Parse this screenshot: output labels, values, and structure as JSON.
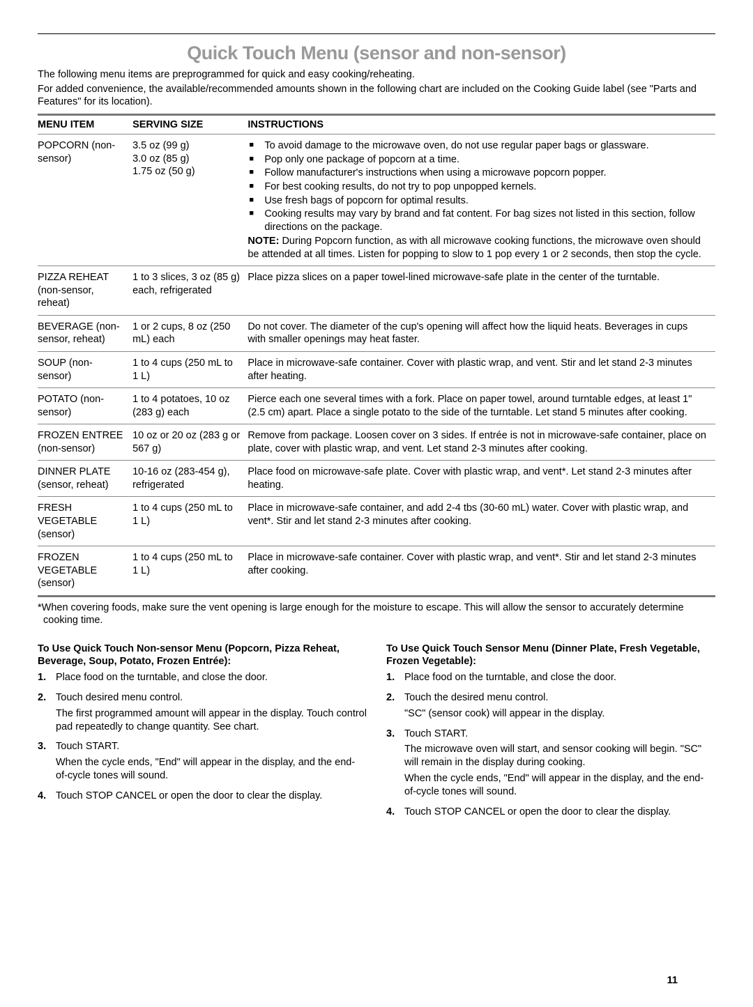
{
  "title": "Quick Touch Menu (sensor and non-sensor)",
  "intro": {
    "p1": "The following menu items are preprogrammed for quick and easy cooking/reheating.",
    "p2": "For added convenience, the available/recommended amounts shown in the following chart are included on the Cooking Guide label (see \"Parts and Features\" for its location)."
  },
  "table": {
    "headers": {
      "c1": "MENU ITEM",
      "c2": "SERVING SIZE",
      "c3": "INSTRUCTIONS"
    },
    "rows": [
      {
        "menu": "POPCORN (non-sensor)",
        "serving": "3.5 oz (99 g)\n3.0 oz (85 g)\n1.75 oz (50 g)",
        "bullets": [
          "To avoid damage to the microwave oven, do not use regular paper bags or glassware.",
          "Pop only one package of popcorn at a time.",
          "Follow manufacturer's instructions when using a microwave popcorn popper.",
          "For best cooking results, do not try to pop unpopped kernels.",
          "Use fresh bags of popcorn for optimal results.",
          "Cooking results may vary by brand and fat content. For bag sizes not listed in this section, follow directions on the package."
        ],
        "note_label": "NOTE:",
        "note": " During Popcorn function, as with all microwave cooking functions, the microwave oven should be attended at all times. Listen for popping to slow to 1 pop every 1 or 2 seconds, then stop the cycle."
      },
      {
        "menu": "PIZZA REHEAT (non-sensor, reheat)",
        "serving": "1 to 3 slices, 3 oz (85 g) each, refrigerated",
        "instr": "Place pizza slices on a paper towel-lined microwave-safe plate in the center of the turntable."
      },
      {
        "menu": "BEVERAGE (non-sensor, reheat)",
        "serving": "1 or 2 cups, 8 oz (250 mL) each",
        "instr": "Do not cover. The diameter of the cup's opening will affect how the liquid heats. Beverages in cups with smaller openings may heat faster."
      },
      {
        "menu": "SOUP (non-sensor)",
        "serving": "1 to 4 cups (250 mL to 1 L)",
        "instr": "Place in microwave-safe container. Cover with plastic wrap, and vent. Stir and let stand 2-3 minutes after heating."
      },
      {
        "menu": "POTATO (non-sensor)",
        "serving": "1 to 4 potatoes, 10 oz (283 g) each",
        "instr": "Pierce each one several times with a fork. Place on paper towel, around turntable edges, at least 1\" (2.5 cm) apart. Place a single potato to the side of the turntable. Let stand 5 minutes after cooking."
      },
      {
        "menu": "FROZEN ENTREE (non-sensor)",
        "serving": "10 oz or 20 oz (283 g or 567 g)",
        "instr": "Remove from package. Loosen cover on 3 sides. If entrée is not in microwave-safe container, place on plate, cover with plastic wrap, and vent. Let stand 2-3 minutes after cooking."
      },
      {
        "menu": "DINNER PLATE (sensor, reheat)",
        "serving": "10-16 oz (283-454 g), refrigerated",
        "instr": "Place food on microwave-safe plate. Cover with plastic wrap, and vent*. Let stand 2-3 minutes after heating."
      },
      {
        "menu": "FRESH VEGETABLE (sensor)",
        "serving": "1 to 4 cups (250 mL to 1 L)",
        "instr": "Place in microwave-safe container, and add 2-4 tbs (30-60 mL) water. Cover with plastic wrap, and vent*. Stir and let stand 2-3 minutes after cooking."
      },
      {
        "menu": "FROZEN VEGETABLE (sensor)",
        "serving": "1 to 4 cups (250 mL to 1 L)",
        "instr": "Place in microwave-safe container. Cover with plastic wrap, and vent*. Stir and let stand 2-3 minutes after cooking."
      }
    ]
  },
  "footnote": "*When covering foods, make sure the vent opening is large enough for the moisture to escape. This will allow the sensor to accurately determine cooking time.",
  "left": {
    "heading": "To Use Quick Touch Non-sensor Menu (Popcorn, Pizza Reheat, Beverage, Soup, Potato, Frozen Entrée):",
    "steps": [
      {
        "t": "Place food on the turntable, and close the door."
      },
      {
        "t": "Touch desired menu control.",
        "sub": [
          "The first programmed amount will appear in the display. Touch control pad repeatedly to change quantity. See chart."
        ]
      },
      {
        "t": "Touch START.",
        "sub": [
          "When the cycle ends, \"End\" will appear in the display, and the end-of-cycle tones will sound."
        ]
      },
      {
        "t": "Touch STOP CANCEL or open the door to clear the display."
      }
    ]
  },
  "right": {
    "heading": "To Use Quick Touch Sensor Menu (Dinner Plate, Fresh Vegetable, Frozen Vegetable):",
    "steps": [
      {
        "t": "Place food on the turntable, and close the door."
      },
      {
        "t": "Touch the desired menu control.",
        "sub": [
          "\"SC\" (sensor cook) will appear in the display."
        ]
      },
      {
        "t": "Touch START.",
        "sub": [
          "The microwave oven will start, and sensor cooking will begin. \"SC\" will remain in the display during cooking.",
          "When the cycle ends, \"End\" will appear in the display, and the end-of-cycle tones will sound."
        ]
      },
      {
        "t": "Touch STOP CANCEL or open the door to clear the display."
      }
    ]
  },
  "page_number": "11"
}
